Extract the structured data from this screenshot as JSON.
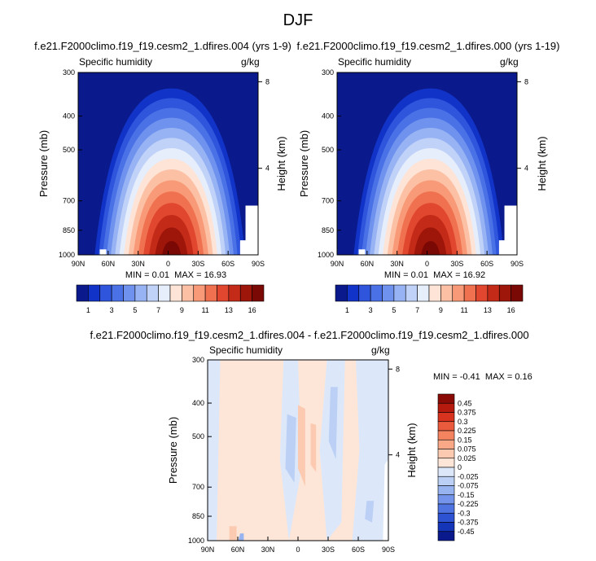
{
  "figure_title": "DJF",
  "chart_data": [
    {
      "type": "heatmap",
      "case_title": "f.e21.F2000climo.f19_f19.cesm2_1.dfires.004 (yrs 1-9)",
      "variable": "Specific humidity",
      "units": "g/kg",
      "xlabel": "",
      "ylabel": "Pressure (mb)",
      "right_axis_label": "Height (km)",
      "x_ticks": [
        "90N",
        "60N",
        "30N",
        "0",
        "30S",
        "60S",
        "90S"
      ],
      "y_ticks": [
        300,
        400,
        500,
        700,
        850,
        1000
      ],
      "height_ticks": [
        8,
        4
      ],
      "xlim": [
        90,
        -90
      ],
      "ylim": [
        1000,
        300
      ],
      "stats": {
        "min_label": "MIN =",
        "min": "0.01",
        "max_label": "MAX =",
        "max": "16.93"
      },
      "colorbar": {
        "orientation": "horizontal",
        "labels": [
          "1",
          "3",
          "5",
          "7",
          "9",
          "11",
          "13",
          "16"
        ],
        "colors": [
          "#0a1a8c",
          "#1233c8",
          "#2e55dc",
          "#4a72e6",
          "#6f92ee",
          "#97b3f3",
          "#c0d2f8",
          "#e6eefc",
          "#fde4d6",
          "#fcc1a5",
          "#f89a77",
          "#f0714f",
          "#e0472e",
          "#c42a18",
          "#9e1509",
          "#7a0804"
        ]
      }
    },
    {
      "type": "heatmap",
      "case_title": "f.e21.F2000climo.f19_f19.cesm2_1.dfires.000 (yrs 1-19)",
      "variable": "Specific humidity",
      "units": "g/kg",
      "xlabel": "",
      "ylabel": "Pressure (mb)",
      "right_axis_label": "Height (km)",
      "x_ticks": [
        "90N",
        "60N",
        "30N",
        "0",
        "30S",
        "60S",
        "90S"
      ],
      "y_ticks": [
        300,
        400,
        500,
        700,
        850,
        1000
      ],
      "height_ticks": [
        8,
        4
      ],
      "xlim": [
        90,
        -90
      ],
      "ylim": [
        1000,
        300
      ],
      "stats": {
        "min_label": "MIN =",
        "min": "0.01",
        "max_label": "MAX =",
        "max": "16.92"
      },
      "colorbar": {
        "orientation": "horizontal",
        "labels": [
          "1",
          "3",
          "5",
          "7",
          "9",
          "11",
          "13",
          "16"
        ],
        "colors": [
          "#0a1a8c",
          "#1233c8",
          "#2e55dc",
          "#4a72e6",
          "#6f92ee",
          "#97b3f3",
          "#c0d2f8",
          "#e6eefc",
          "#fde4d6",
          "#fcc1a5",
          "#f89a77",
          "#f0714f",
          "#e0472e",
          "#c42a18",
          "#9e1509",
          "#7a0804"
        ]
      }
    },
    {
      "type": "heatmap",
      "case_title": "f.e21.F2000climo.f19_f19.cesm2_1.dfires.004 - f.e21.F2000climo.f19_f19.cesm2_1.dfires.000",
      "variable": "Specific humidity",
      "units": "g/kg",
      "xlabel": "",
      "ylabel": "Pressure (mb)",
      "right_axis_label": "Height (km)",
      "x_ticks": [
        "90N",
        "60N",
        "30N",
        "0",
        "30S",
        "60S",
        "90S"
      ],
      "y_ticks": [
        300,
        400,
        500,
        700,
        850,
        1000
      ],
      "height_ticks": [
        8,
        4
      ],
      "xlim": [
        90,
        -90
      ],
      "ylim": [
        1000,
        300
      ],
      "stats": {
        "min_label": "MIN =",
        "min": "-0.41",
        "max_label": "MAX =",
        "max": "0.16"
      },
      "colorbar": {
        "orientation": "vertical",
        "labels": [
          "0.45",
          "0.375",
          "0.3",
          "0.225",
          "0.15",
          "0.075",
          "0.025",
          "0",
          "-0.025",
          "-0.075",
          "-0.15",
          "-0.225",
          "-0.3",
          "-0.375",
          "-0.45"
        ],
        "colors": [
          "#8a0b06",
          "#b61a0e",
          "#d8331e",
          "#ea5a3c",
          "#f4845f",
          "#f9a988",
          "#fccab0",
          "#fde6d8",
          "#dce8fa",
          "#bcd0f6",
          "#97b3f0",
          "#7394ea",
          "#4f74e2",
          "#2d52d2",
          "#1535b8",
          "#0a1a8c"
        ]
      }
    }
  ]
}
